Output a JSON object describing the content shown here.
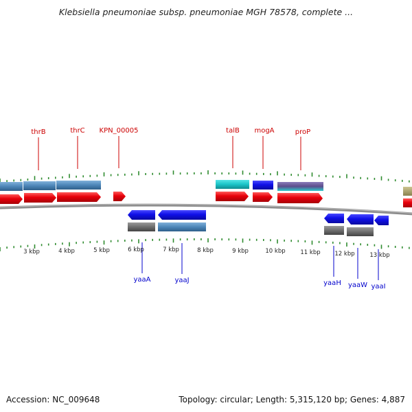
{
  "title": "Klebsiella pneumoniae subsp. pneumoniae MGH 78578, complete ...",
  "footer": {
    "accession": "Accession: NC_009648",
    "stats": "Topology: circular; Length: 5,315,120 bp; Genes: 4,887"
  },
  "colors": {
    "cds": "#e8000b",
    "gene_blue": "#1010e8",
    "steel_blue": "#4d86b8",
    "cyan": "#1bc4c8",
    "purple": "#6a5a9a",
    "gray": "#6e6e6e",
    "olive": "#a9a066",
    "backbone": "#8c8c8c",
    "tick": "#2e8b2e",
    "label_red": "#cc0000",
    "label_blue": "#0000cc"
  },
  "scale_labels": [
    "3 kbp",
    "4 kbp",
    "5 kbp",
    "6 kbp",
    "7 kbp",
    "8 kbp",
    "9 kbp",
    "10 kbp",
    "11 kbp",
    "12 kbp",
    "13 kbp"
  ],
  "labels_top": [
    "thrB",
    "thrC",
    "KPN_00005",
    "talB",
    "mogA",
    "proP"
  ],
  "labels_bottom": [
    "yaaA",
    "yaaJ",
    "yaaH",
    "yaaW",
    "yaaI"
  ]
}
